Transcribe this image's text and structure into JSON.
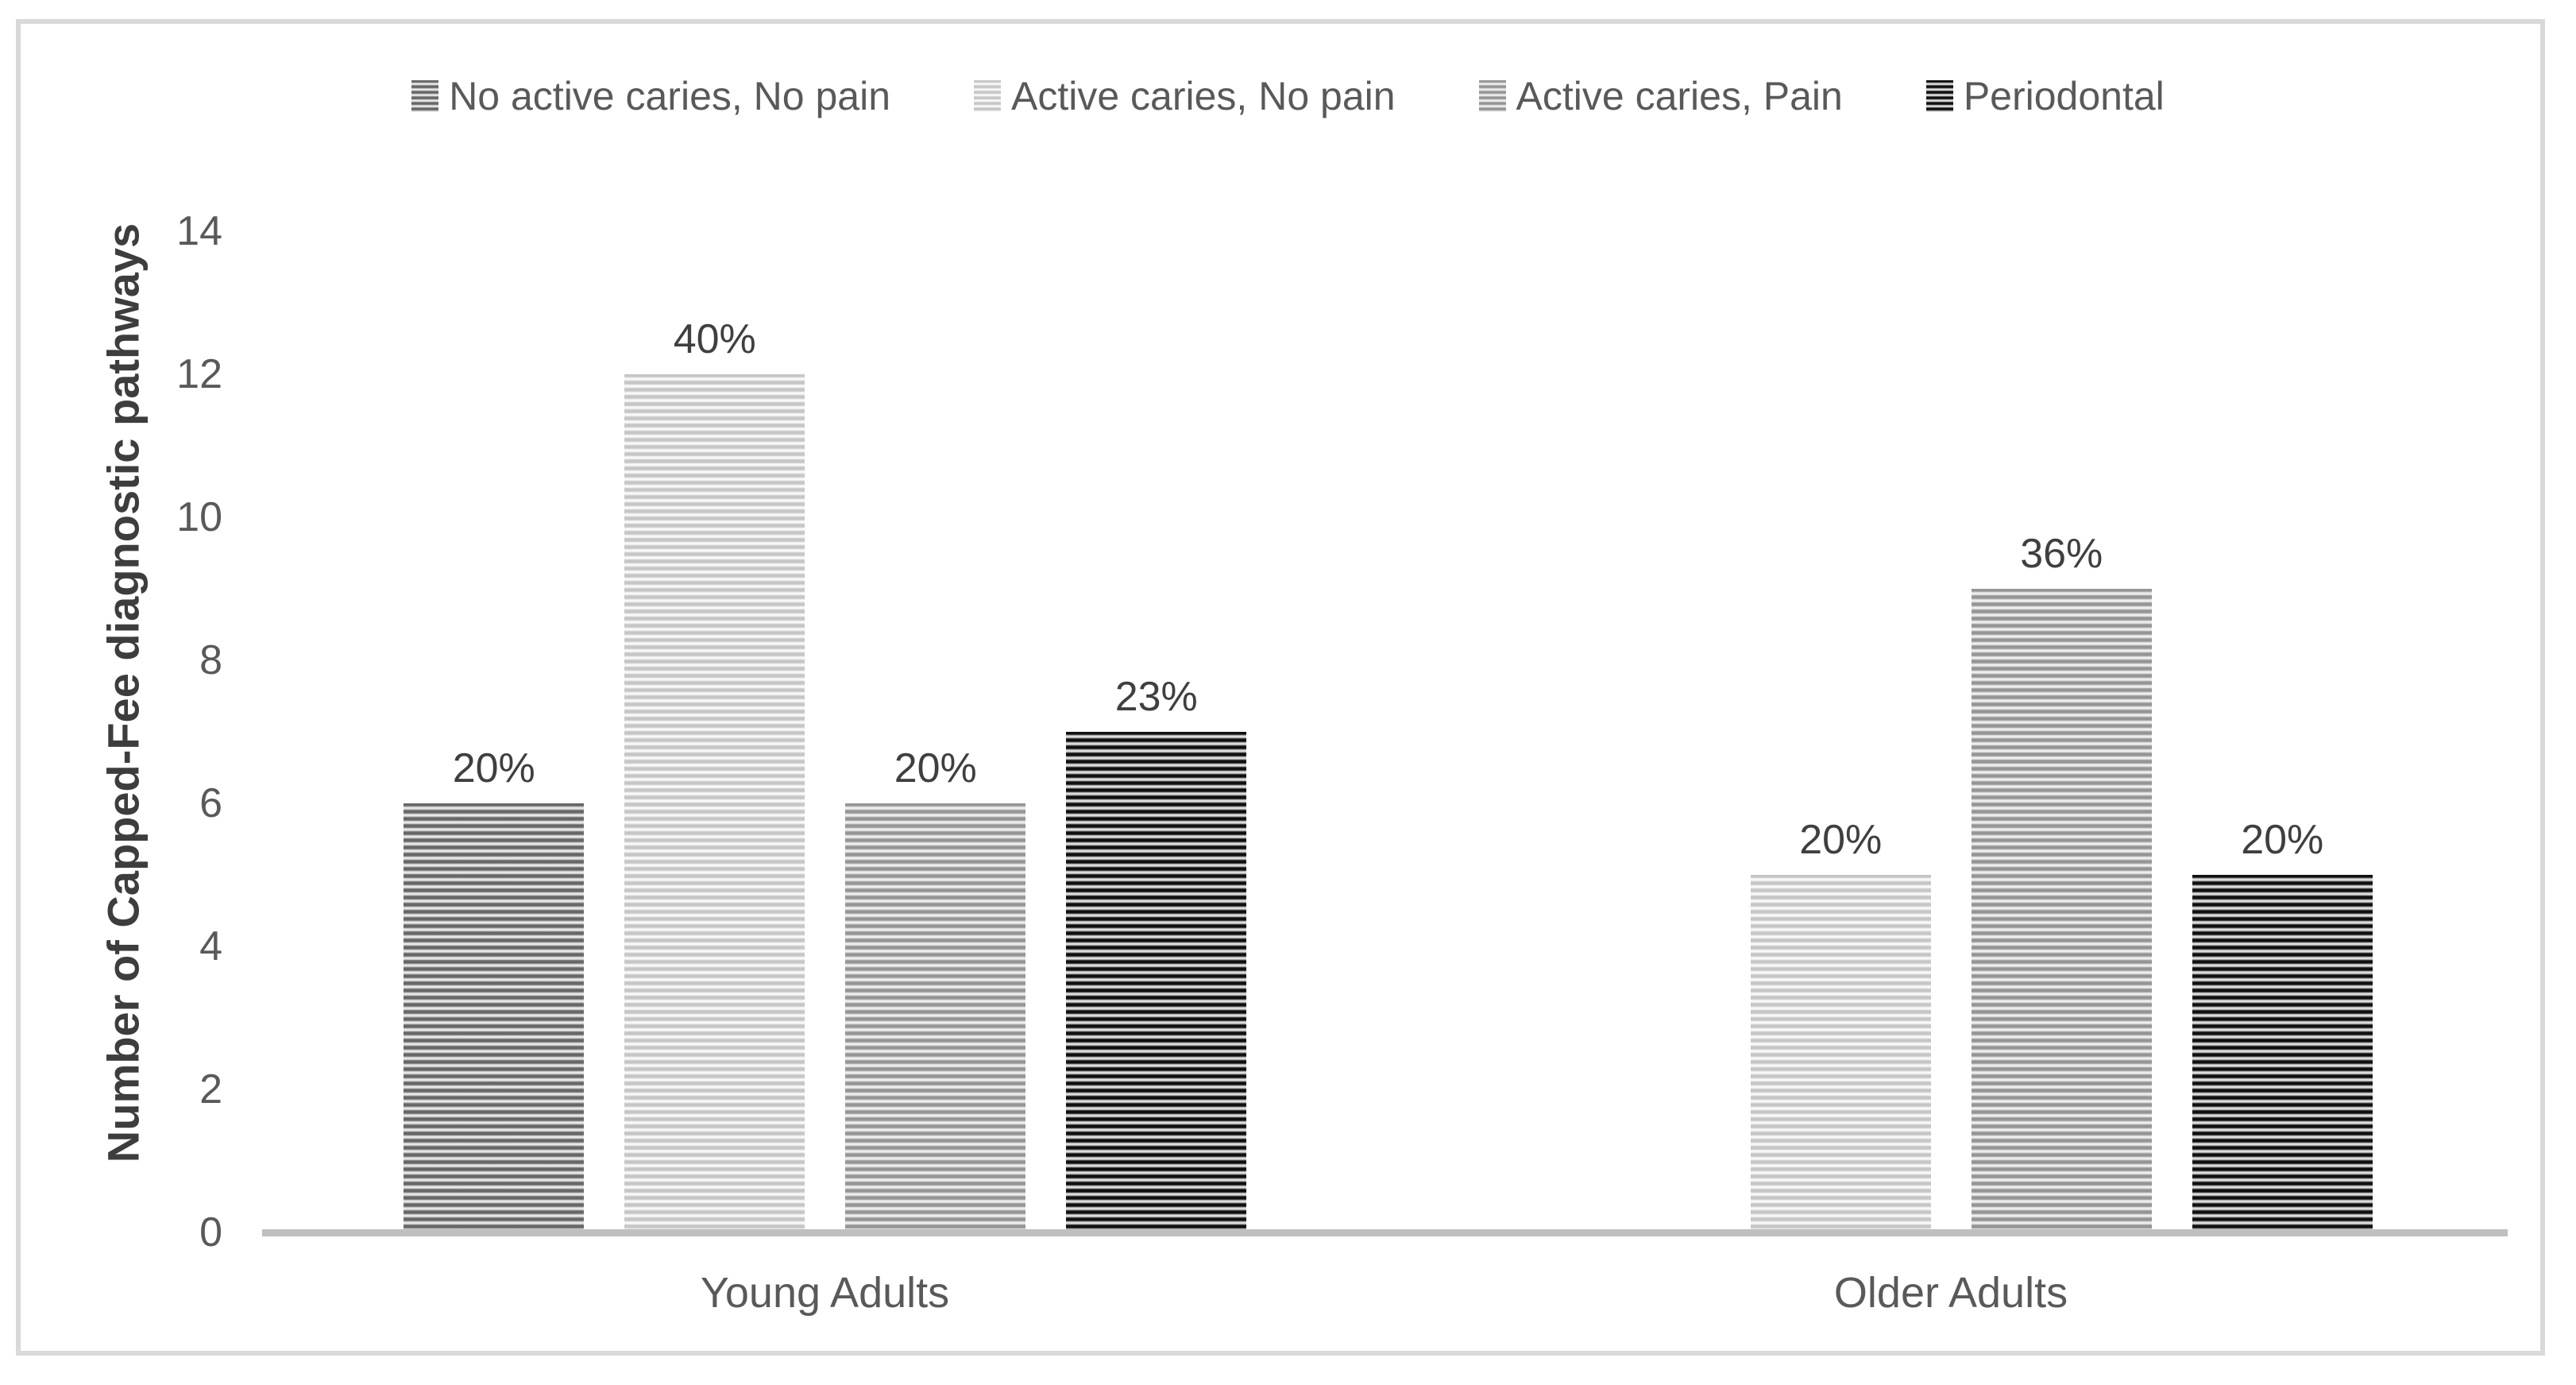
{
  "figure": {
    "background": "#ffffff",
    "border_color": "#d9d9d9"
  },
  "colors": {
    "axis_line": "#bfbfbf",
    "tick_text": "#595959",
    "data_label_text": "#3f3f3f",
    "axis_title_text": "#3d3d3d"
  },
  "axes": {
    "y_tick_labels": [
      "0",
      "2",
      "4",
      "6",
      "8",
      "10",
      "12",
      "14"
    ]
  },
  "chart_data": {
    "type": "bar",
    "title": "",
    "xlabel": "",
    "ylabel": "Number of Capped-Fee diagnostic pathways",
    "ylim": [
      0,
      14
    ],
    "y_tick_step": 2,
    "grid": false,
    "legend_position": "top",
    "categories": [
      "Young Adults",
      "Older Adults"
    ],
    "series": [
      {
        "name": "No active caries, No pain",
        "values": [
          6,
          0
        ],
        "data_labels": [
          "20%",
          ""
        ],
        "pattern": {
          "style": "horizontal-stripes",
          "dark": "#676767",
          "light": "#e6e6e6"
        }
      },
      {
        "name": "Active caries, No pain",
        "values": [
          12,
          5
        ],
        "data_labels": [
          "40%",
          "20%"
        ],
        "pattern": {
          "style": "horizontal-stripes",
          "dark": "#c6c6c6",
          "light": "#f8f8f8"
        }
      },
      {
        "name": "Active caries, Pain",
        "values": [
          6,
          9
        ],
        "data_labels": [
          "20%",
          "36%"
        ],
        "pattern": {
          "style": "horizontal-stripes",
          "dark": "#959595",
          "light": "#ededed"
        }
      },
      {
        "name": "Periodontal",
        "values": [
          7,
          5
        ],
        "data_labels": [
          "23%",
          "20%"
        ],
        "pattern": {
          "style": "horizontal-stripes",
          "dark": "#101010",
          "light": "#dcdcdc"
        }
      }
    ]
  }
}
